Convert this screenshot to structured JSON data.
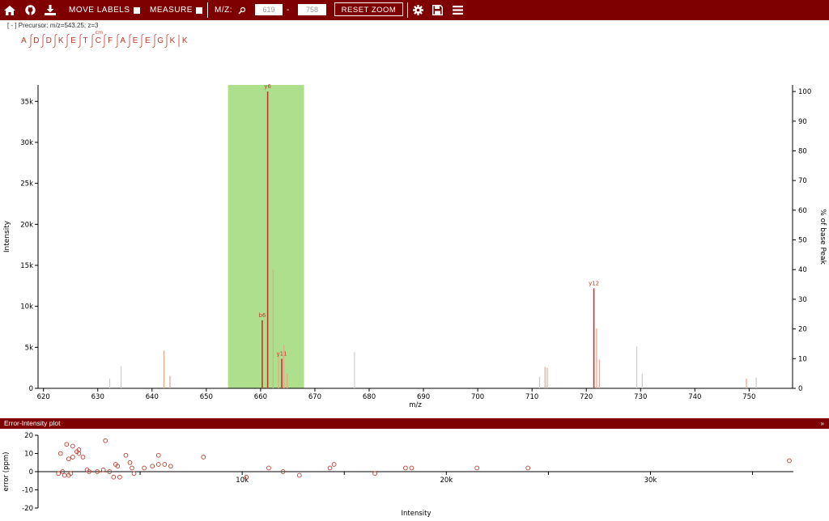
{
  "toolbar": {
    "icons": [
      "home-icon",
      "github-icon",
      "download-icon",
      "gear-icon",
      "save-icon",
      "menu-icon"
    ],
    "move_labels": "MOVE LABELS",
    "measure": "MEASURE",
    "mz_label": "M/Z:",
    "mz_min": "619",
    "mz_dash": "-",
    "mz_max": "758",
    "reset_zoom": "RESET ZOOM"
  },
  "precursor": "[ - ] Precursor: m/z=543.25; z=3",
  "sequence": {
    "residues": [
      "A",
      "D",
      "D",
      "K",
      "E",
      "T",
      "C",
      "F",
      "A",
      "E",
      "E",
      "G",
      "K",
      "K"
    ],
    "modification": {
      "index": 6,
      "label": "cm"
    }
  },
  "error_panel_title": "Error-Intensity plot",
  "colors": {
    "toolbar": "#7f0000",
    "matched_peak": "#c0392b",
    "highlight": "#addf8d",
    "unmatched_peak": "#cccccc"
  },
  "chart_data": [
    {
      "type": "bar",
      "title": "",
      "xlabel": "m/z",
      "ylabel": "Intensity",
      "y2label": "% of base Peak",
      "xlim": [
        619,
        758
      ],
      "ylim": [
        0,
        37000
      ],
      "y2lim": [
        0,
        102.2
      ],
      "xticks": [
        "620",
        "630",
        "640",
        "650",
        "660",
        "670",
        "680",
        "690",
        "700",
        "710",
        "720",
        "730",
        "740",
        "750"
      ],
      "yticks": [
        "0",
        "5k",
        "10k",
        "15k",
        "20k",
        "25k",
        "30k",
        "35k"
      ],
      "y2ticks": [
        "0",
        "10",
        "20",
        "30",
        "40",
        "50",
        "60",
        "70",
        "80",
        "90",
        "100"
      ],
      "highlight_range": [
        654,
        668
      ],
      "peaks": [
        {
          "mz": 632.2,
          "intensity": 1200,
          "class": "unmatched"
        },
        {
          "mz": 634.3,
          "intensity": 2700,
          "class": "unmatched"
        },
        {
          "mz": 642.2,
          "intensity": 4600,
          "class": "matched-faint"
        },
        {
          "mz": 643.3,
          "intensity": 1500,
          "class": "matched-faint"
        },
        {
          "mz": 660.3,
          "intensity": 8300,
          "class": "matched",
          "label": "b6"
        },
        {
          "mz": 661.3,
          "intensity": 36200,
          "class": "matched",
          "label": "y6"
        },
        {
          "mz": 662.3,
          "intensity": 14500,
          "class": "matched-faint"
        },
        {
          "mz": 663.3,
          "intensity": 4000,
          "class": "matched-faint"
        },
        {
          "mz": 663.9,
          "intensity": 3600,
          "class": "matched",
          "label": "y11"
        },
        {
          "mz": 664.3,
          "intensity": 5300,
          "class": "matched-faint"
        },
        {
          "mz": 664.9,
          "intensity": 1800,
          "class": "matched-faint"
        },
        {
          "mz": 677.3,
          "intensity": 4400,
          "class": "unmatched"
        },
        {
          "mz": 711.4,
          "intensity": 1400,
          "class": "unmatched"
        },
        {
          "mz": 712.4,
          "intensity": 2600,
          "class": "matched-faint"
        },
        {
          "mz": 712.8,
          "intensity": 2500,
          "class": "matched-faint"
        },
        {
          "mz": 721.4,
          "intensity": 12200,
          "class": "matched",
          "label": "y12"
        },
        {
          "mz": 721.9,
          "intensity": 7300,
          "class": "matched-faint"
        },
        {
          "mz": 722.4,
          "intensity": 3500,
          "class": "matched-faint"
        },
        {
          "mz": 729.3,
          "intensity": 5100,
          "class": "unmatched"
        },
        {
          "mz": 730.3,
          "intensity": 1800,
          "class": "unmatched"
        },
        {
          "mz": 749.5,
          "intensity": 1200,
          "class": "matched-faint"
        },
        {
          "mz": 751.3,
          "intensity": 1300,
          "class": "unmatched"
        }
      ]
    },
    {
      "type": "scatter",
      "title": "",
      "xlabel": "Intensity",
      "ylabel": "error (ppm)",
      "xlim": [
        0,
        37000
      ],
      "ylim": [
        -20,
        20
      ],
      "xticks": [
        "10k",
        "20k",
        "30k"
      ],
      "yticks": [
        "20",
        "10",
        "0",
        "-10",
        "-20"
      ],
      "points": [
        [
          1000,
          -1
        ],
        [
          1100,
          10
        ],
        [
          1200,
          0
        ],
        [
          1300,
          -2
        ],
        [
          1400,
          15
        ],
        [
          1500,
          -2
        ],
        [
          1500,
          7
        ],
        [
          1600,
          -1
        ],
        [
          1700,
          14
        ],
        [
          1700,
          8
        ],
        [
          1900,
          11
        ],
        [
          2000,
          12
        ],
        [
          2000,
          10
        ],
        [
          2200,
          8
        ],
        [
          2400,
          1
        ],
        [
          2500,
          0
        ],
        [
          2900,
          0
        ],
        [
          3200,
          1
        ],
        [
          3300,
          17
        ],
        [
          3500,
          0
        ],
        [
          3700,
          -3
        ],
        [
          3800,
          4
        ],
        [
          3900,
          3
        ],
        [
          4000,
          -3
        ],
        [
          4300,
          9
        ],
        [
          4500,
          5
        ],
        [
          4600,
          2
        ],
        [
          4700,
          -1
        ],
        [
          5200,
          2
        ],
        [
          5600,
          3
        ],
        [
          5900,
          4
        ],
        [
          5900,
          9
        ],
        [
          6200,
          4
        ],
        [
          6500,
          3
        ],
        [
          8100,
          8
        ],
        [
          10200,
          -3
        ],
        [
          11300,
          2
        ],
        [
          12000,
          0
        ],
        [
          12800,
          -2
        ],
        [
          14300,
          2
        ],
        [
          14500,
          4
        ],
        [
          16500,
          -1
        ],
        [
          18000,
          2
        ],
        [
          18300,
          2
        ],
        [
          21500,
          2
        ],
        [
          24000,
          2
        ],
        [
          36800,
          6
        ]
      ]
    }
  ]
}
